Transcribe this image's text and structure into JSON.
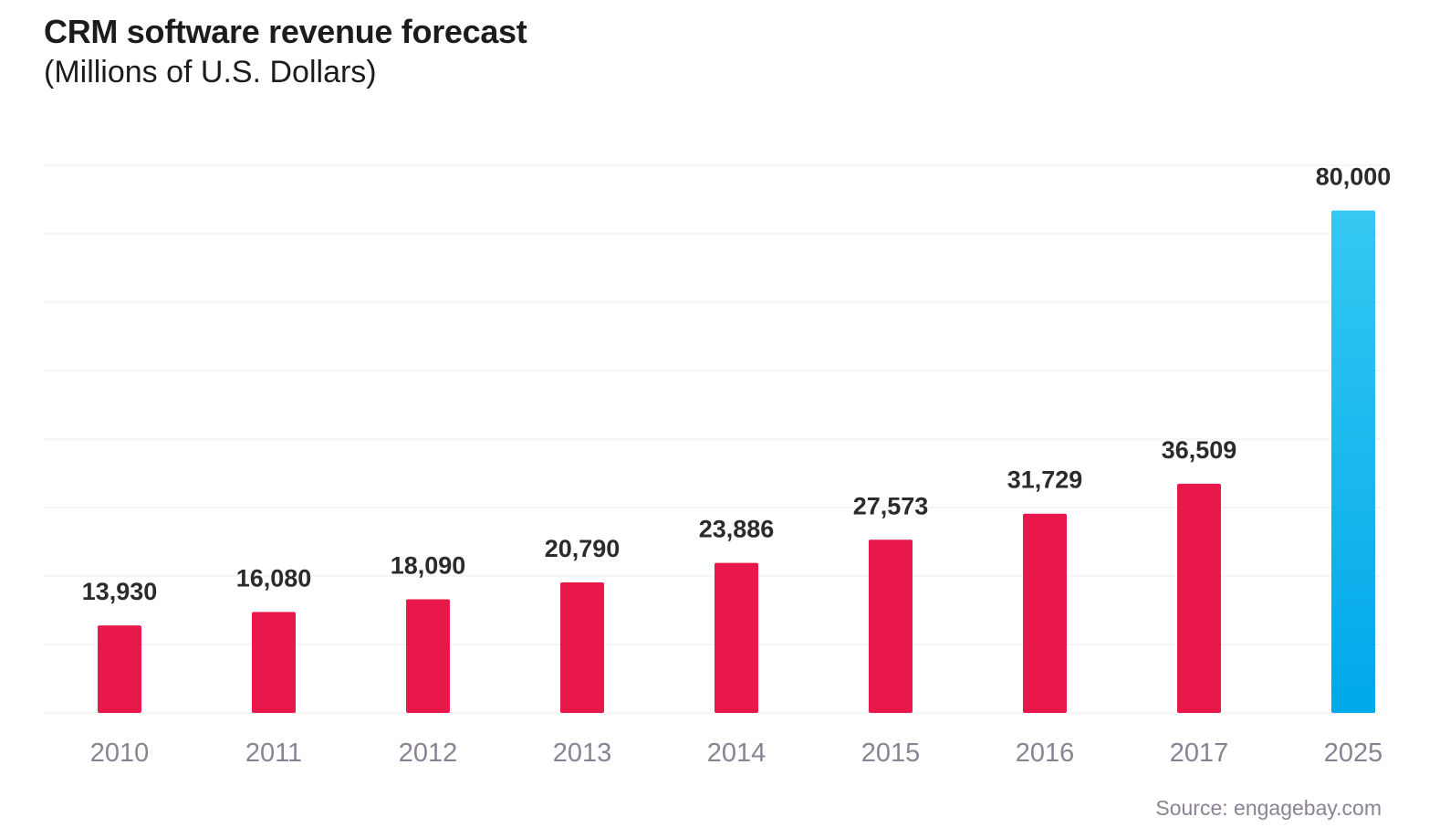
{
  "chart_data": {
    "type": "bar",
    "title": "CRM software revenue forecast",
    "subtitle": "(Millions of U.S. Dollars)",
    "categories": [
      "2010",
      "2011",
      "2012",
      "2013",
      "2014",
      "2015",
      "2016",
      "2017",
      "2025"
    ],
    "values": [
      13930,
      16080,
      18090,
      20790,
      23886,
      27573,
      31729,
      36509,
      80000
    ],
    "data_labels": [
      "13,930",
      "16,080",
      "18,090",
      "20,790",
      "23,886",
      "27,573",
      "31,729",
      "36,509",
      "80,000"
    ],
    "highlight_index": 8,
    "colors": {
      "bar": "#e8194a",
      "bar_highlight_top": "#35c8f2",
      "bar_highlight_bottom": "#00a8ea",
      "grid": "#ececec",
      "label": "#2b2b2b",
      "tick": "#8b8393"
    },
    "grid": true,
    "legend": "none",
    "xlabel": "",
    "ylabel": ""
  },
  "source": "Source: engagebay.com"
}
